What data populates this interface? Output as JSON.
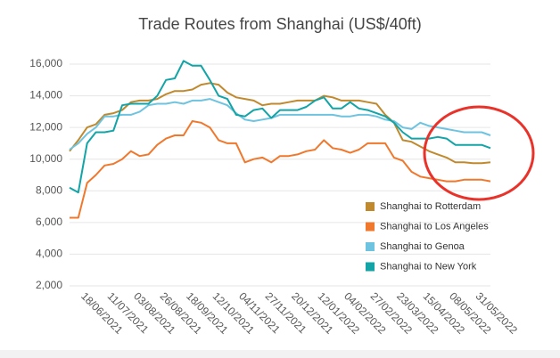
{
  "chart_data": {
    "type": "line",
    "title": "Trade Routes from Shanghai (US$/40ft)",
    "categories": [
      null,
      null,
      null,
      "18/06/2021",
      null,
      null,
      "11/07/2021",
      null,
      null,
      "03/08/2021",
      null,
      null,
      "26/08/2021",
      null,
      null,
      "18/09/2021",
      null,
      null,
      "12/10/2021",
      null,
      null,
      "04/11/2021",
      null,
      null,
      "27/11/2021",
      null,
      null,
      "20/12/2021",
      null,
      null,
      "12/01/2022",
      null,
      null,
      "04/02/2022",
      null,
      null,
      "27/02/2022",
      null,
      null,
      "23/03/2022",
      null,
      null,
      "15/04/2022",
      null,
      null,
      "08/05/2022",
      null,
      null,
      "31/05/2022"
    ],
    "series": [
      {
        "name": "Shanghai to Rotterdam",
        "color": "#c0892d",
        "values": [
          10500,
          11200,
          12000,
          12200,
          12800,
          12900,
          13100,
          13600,
          13700,
          13700,
          13800,
          14100,
          14300,
          14300,
          14400,
          14700,
          14800,
          14700,
          14200,
          13900,
          13800,
          13700,
          13400,
          13500,
          13500,
          13600,
          13700,
          13700,
          13700,
          14000,
          13900,
          13700,
          13700,
          13700,
          13600,
          13500,
          12800,
          12300,
          11200,
          11100,
          10800,
          10500,
          10300,
          10100,
          9800,
          9800,
          9750,
          9750,
          9800
        ]
      },
      {
        "name": "Shanghai to Los Angeles",
        "color": "#f0782d",
        "values": [
          6300,
          6300,
          8500,
          9000,
          9600,
          9700,
          10000,
          10500,
          10200,
          10300,
          10900,
          11300,
          11500,
          11500,
          12400,
          12300,
          12000,
          11200,
          11000,
          11000,
          9800,
          10000,
          10100,
          9800,
          10200,
          10200,
          10300,
          10500,
          10600,
          11200,
          10700,
          10600,
          10400,
          10600,
          11000,
          11000,
          11000,
          10100,
          9900,
          9200,
          8900,
          8800,
          8700,
          8600,
          8600,
          8700,
          8700,
          8700,
          8600
        ]
      },
      {
        "name": "Shanghai to Genoa",
        "color": "#6ec3e0",
        "values": [
          10600,
          11000,
          11600,
          12000,
          12700,
          12700,
          12800,
          12800,
          13000,
          13400,
          13500,
          13500,
          13600,
          13500,
          13700,
          13700,
          13800,
          13600,
          13400,
          12900,
          12500,
          12400,
          12500,
          12600,
          12800,
          12800,
          12800,
          12800,
          12800,
          12800,
          12800,
          12700,
          12700,
          12800,
          12800,
          12700,
          12500,
          12400,
          12000,
          11900,
          12300,
          12100,
          12000,
          11900,
          11800,
          11700,
          11700,
          11700,
          11500
        ]
      },
      {
        "name": "Shanghai to New York",
        "color": "#12a4a6",
        "values": [
          8200,
          7900,
          11000,
          11700,
          11700,
          11800,
          13400,
          13500,
          13500,
          13500,
          14000,
          15000,
          15100,
          16200,
          15900,
          15900,
          15000,
          14000,
          13800,
          12800,
          12700,
          13100,
          13200,
          12600,
          13100,
          13100,
          13100,
          13300,
          13700,
          13900,
          13200,
          13200,
          13600,
          13200,
          13100,
          12900,
          12700,
          12300,
          11700,
          11300,
          11300,
          11300,
          11400,
          11300,
          10900,
          10900,
          10900,
          10900,
          10700
        ]
      }
    ],
    "ylim": [
      2000,
      16000
    ],
    "yticks": [
      {
        "value": 2000,
        "label": "2,000"
      },
      {
        "value": 4000,
        "label": "4,000"
      },
      {
        "value": 6000,
        "label": "6,000"
      },
      {
        "value": 8000,
        "label": "8,000"
      },
      {
        "value": 10000,
        "label": "10,000"
      },
      {
        "value": 12000,
        "label": "12,000"
      },
      {
        "value": 14000,
        "label": "14,000"
      },
      {
        "value": 16000,
        "label": "16,000"
      }
    ],
    "grid": true,
    "legend": "lower right"
  }
}
